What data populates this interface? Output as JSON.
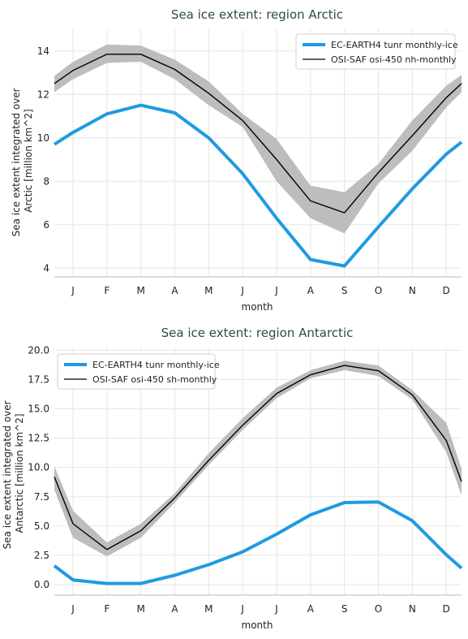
{
  "colors": {
    "model": "#1f9be0",
    "obs": "#000000",
    "band": "#bdbdbd",
    "title": "#2d4a4f"
  },
  "chart_data": [
    {
      "type": "line",
      "title": "Sea ice extent: region Arctic",
      "xlabel": "month",
      "ylabel": [
        "Sea ice extent integrated over",
        "Arctic [million km^2]"
      ],
      "categories": [
        "J",
        "F",
        "M",
        "A",
        "M",
        "J",
        "J",
        "A",
        "S",
        "O",
        "N",
        "D"
      ],
      "ylim": [
        3.6,
        15.0
      ],
      "yticks": [
        4,
        6,
        8,
        10,
        12,
        14
      ],
      "ytick_labels": [
        "4",
        "6",
        "8",
        "10",
        "12",
        "14"
      ],
      "legend": "top-right",
      "grid": true,
      "series": [
        {
          "name": "EC-EARTH4 tunr monthly-ice",
          "role": "model",
          "values": [
            10.25,
            11.1,
            11.5,
            11.15,
            10.0,
            8.35,
            6.3,
            4.4,
            4.1,
            5.9,
            7.65,
            9.25
          ],
          "edge_start": 9.7,
          "edge_end": 9.8
        },
        {
          "name": "OSI-SAF osi-450 nh-monthly",
          "role": "obs",
          "values": [
            13.1,
            13.85,
            13.85,
            13.15,
            12.05,
            10.8,
            9.0,
            7.1,
            6.55,
            8.4,
            10.1,
            11.85
          ],
          "edge_start": 12.5,
          "edge_end": 12.5,
          "band_upper": [
            13.5,
            14.3,
            14.25,
            13.6,
            12.6,
            11.1,
            9.95,
            7.8,
            7.5,
            8.8,
            10.8,
            12.4
          ],
          "band_lower": [
            12.7,
            13.45,
            13.5,
            12.7,
            11.5,
            10.5,
            8.0,
            6.3,
            5.6,
            7.9,
            9.4,
            11.4
          ],
          "band_edge_start": [
            12.85,
            12.1
          ],
          "band_edge_end": [
            12.9,
            12.1
          ]
        }
      ]
    },
    {
      "type": "line",
      "title": "Sea ice extent: region Antarctic",
      "xlabel": "month",
      "ylabel": [
        "Sea ice extent integrated over",
        "Antarctic [million km^2]"
      ],
      "categories": [
        "J",
        "F",
        "M",
        "A",
        "M",
        "J",
        "J",
        "A",
        "S",
        "O",
        "N",
        "D"
      ],
      "ylim": [
        -0.9,
        20.3
      ],
      "yticks": [
        0,
        2.5,
        5,
        7.5,
        10,
        12.5,
        15,
        17.5,
        20
      ],
      "ytick_labels": [
        "0.0",
        "2.5",
        "5.0",
        "7.5",
        "10.0",
        "12.5",
        "15.0",
        "17.5",
        "20.0"
      ],
      "legend": "top-left",
      "grid": true,
      "series": [
        {
          "name": "EC-EARTH4 tunr monthly-ice",
          "role": "model",
          "values": [
            0.4,
            0.1,
            0.1,
            0.8,
            1.7,
            2.8,
            4.3,
            5.95,
            7.0,
            7.05,
            5.45,
            2.55
          ],
          "edge_start": 1.6,
          "edge_end": 1.4
        },
        {
          "name": "OSI-SAF osi-450 sh-monthly",
          "role": "obs",
          "values": [
            5.2,
            3.0,
            4.6,
            7.4,
            10.6,
            13.6,
            16.3,
            17.9,
            18.7,
            18.25,
            16.2,
            12.3
          ],
          "edge_start": 9.2,
          "edge_end": 8.8,
          "band_upper": [
            6.3,
            3.6,
            5.2,
            7.8,
            11.2,
            14.2,
            16.8,
            18.3,
            19.1,
            18.7,
            16.6,
            13.8
          ],
          "band_lower": [
            4.0,
            2.4,
            4.0,
            7.0,
            10.2,
            13.2,
            15.9,
            17.6,
            18.3,
            17.8,
            15.8,
            11.3
          ],
          "band_edge_start": [
            10.1,
            8.1
          ],
          "band_edge_end": [
            9.9,
            7.6
          ]
        }
      ]
    }
  ]
}
